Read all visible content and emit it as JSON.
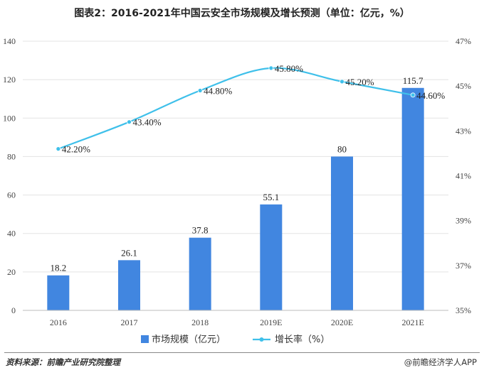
{
  "title": "图表2：2016-2021年中国云安全市场规模及增长预测（单位：亿元，%）",
  "source": "资料来源：前瞻产业研究院整理",
  "brand": "@前瞻经济学人APP",
  "colors": {
    "bar": "#4186e0",
    "line": "#3fc0ea",
    "grid": "#e3e3e3"
  },
  "chart_data": {
    "type": "bar",
    "title": "图表2：2016-2021年中国云安全市场规模及增长预测（单位：亿元，%）",
    "categories": [
      "2016",
      "2017",
      "2018",
      "2019E",
      "2020E",
      "2021E"
    ],
    "series": [
      {
        "name": "市场规模（亿元）",
        "type": "bar",
        "axis": "left",
        "values": [
          18.2,
          26.1,
          37.8,
          55.1,
          80,
          115.7
        ],
        "labels": [
          "18.2",
          "26.1",
          "37.8",
          "55.1",
          "80",
          "115.7"
        ]
      },
      {
        "name": "增长率（%）",
        "type": "line",
        "axis": "right",
        "values": [
          42.2,
          43.4,
          44.8,
          45.8,
          45.2,
          44.6
        ],
        "labels": [
          "42.20%",
          "43.40%",
          "44.80%",
          "45.80%",
          "45.20%",
          "44.60%"
        ]
      }
    ],
    "y_left": {
      "min": 0,
      "max": 140,
      "ticks": [
        "0",
        "20",
        "40",
        "60",
        "80",
        "100",
        "120",
        "140"
      ]
    },
    "y_right": {
      "min": 35,
      "max": 47,
      "ticks": [
        "35%",
        "37%",
        "39%",
        "41%",
        "43%",
        "45%",
        "47%"
      ]
    },
    "grid": true,
    "legend": "bottom"
  }
}
